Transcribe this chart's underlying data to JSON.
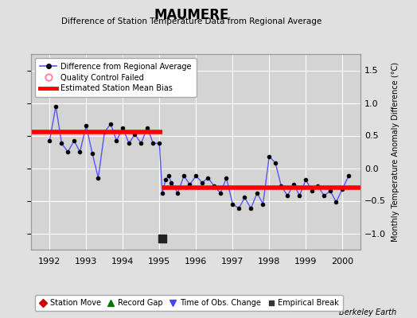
{
  "title": "MAUMERE",
  "subtitle": "Difference of Station Temperature Data from Regional Average",
  "ylabel": "Monthly Temperature Anomaly Difference (°C)",
  "xlabel_years": [
    1992,
    1993,
    1994,
    1995,
    1996,
    1997,
    1998,
    1999,
    2000
  ],
  "xlim": [
    1991.5,
    2000.5
  ],
  "ylim": [
    -1.25,
    1.75
  ],
  "yticks": [
    -1.0,
    -0.5,
    0.0,
    0.5,
    1.0,
    1.5
  ],
  "background_color": "#e0e0e0",
  "plot_bg_color": "#d4d4d4",
  "grid_color": "#ffffff",
  "line_color": "#5555ff",
  "marker_color": "#000000",
  "bias1_y": 0.56,
  "bias1_xstart": 1991.5,
  "bias1_xend": 1995.08,
  "bias2_y": -0.3,
  "bias2_xstart": 1995.08,
  "bias2_xend": 2000.5,
  "empirical_break_x": 1995.08,
  "empirical_break_y": -1.08,
  "segment1_times": [
    1992.0,
    1992.17,
    1992.33,
    1992.5,
    1992.67,
    1992.83,
    1993.0,
    1993.17,
    1993.33,
    1993.5,
    1993.67,
    1993.83,
    1994.0,
    1994.17,
    1994.33,
    1994.5,
    1994.67,
    1994.83,
    1995.0
  ],
  "segment1_values": [
    0.42,
    0.95,
    0.38,
    0.25,
    0.42,
    0.25,
    0.65,
    0.22,
    -0.15,
    0.55,
    0.68,
    0.42,
    0.62,
    0.38,
    0.52,
    0.38,
    0.62,
    0.38,
    0.38
  ],
  "drop_times": [
    1995.0,
    1995.08
  ],
  "drop_values": [
    0.38,
    -0.38
  ],
  "segment2_times": [
    1995.08,
    1995.17,
    1995.25,
    1995.33,
    1995.5,
    1995.67,
    1995.83,
    1996.0,
    1996.17,
    1996.33,
    1996.5,
    1996.67,
    1996.83,
    1997.0,
    1997.17,
    1997.33,
    1997.5,
    1997.67,
    1997.83,
    1998.0,
    1998.17,
    1998.33,
    1998.5,
    1998.67,
    1998.83,
    1999.0,
    1999.17,
    1999.33,
    1999.5,
    1999.67,
    1999.83,
    2000.0,
    2000.17
  ],
  "segment2_values": [
    -0.38,
    -0.18,
    -0.12,
    -0.22,
    -0.38,
    -0.12,
    -0.25,
    -0.12,
    -0.22,
    -0.15,
    -0.28,
    -0.38,
    -0.15,
    -0.55,
    -0.62,
    -0.45,
    -0.62,
    -0.38,
    -0.55,
    0.18,
    0.08,
    -0.28,
    -0.42,
    -0.25,
    -0.42,
    -0.18,
    -0.35,
    -0.28,
    -0.42,
    -0.35,
    -0.52,
    -0.32,
    -0.12
  ],
  "footer": "Berkeley Earth"
}
